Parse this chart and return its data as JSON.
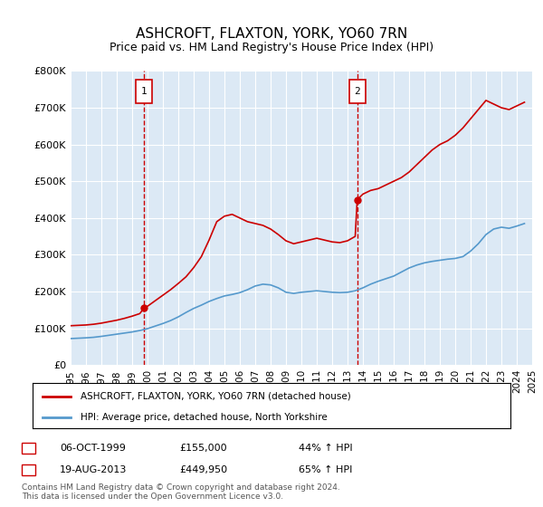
{
  "title": "ASHCROFT, FLAXTON, YORK, YO60 7RN",
  "subtitle": "Price paid vs. HM Land Registry's House Price Index (HPI)",
  "bg_color": "#dce9f5",
  "plot_bg": "#dce9f5",
  "legend_line1": "ASHCROFT, FLAXTON, YORK, YO60 7RN (detached house)",
  "legend_line2": "HPI: Average price, detached house, North Yorkshire",
  "footer": "Contains HM Land Registry data © Crown copyright and database right 2024.\nThis data is licensed under the Open Government Licence v3.0.",
  "sale1_date": "06-OCT-1999",
  "sale1_price": "£155,000",
  "sale1_pct": "44% ↑ HPI",
  "sale2_date": "19-AUG-2013",
  "sale2_price": "£449,950",
  "sale2_pct": "65% ↑ HPI",
  "sale1_x": 1999.77,
  "sale1_y": 155000,
  "sale2_x": 2013.63,
  "sale2_y": 449950,
  "ylim": [
    0,
    800000
  ],
  "xlim": [
    1995,
    2025
  ],
  "red_line_color": "#cc0000",
  "blue_line_color": "#5599cc",
  "marker_box_color": "#cc0000",
  "vline_color": "#cc0000",
  "hpi_x": [
    1995,
    1995.5,
    1996,
    1996.5,
    1997,
    1997.5,
    1998,
    1998.5,
    1999,
    1999.5,
    2000,
    2000.5,
    2001,
    2001.5,
    2002,
    2002.5,
    2003,
    2003.5,
    2004,
    2004.5,
    2005,
    2005.5,
    2006,
    2006.5,
    2007,
    2007.5,
    2008,
    2008.5,
    2009,
    2009.5,
    2010,
    2010.5,
    2011,
    2011.5,
    2012,
    2012.5,
    2013,
    2013.5,
    2014,
    2014.5,
    2015,
    2015.5,
    2016,
    2016.5,
    2017,
    2017.5,
    2018,
    2018.5,
    2019,
    2019.5,
    2020,
    2020.5,
    2021,
    2021.5,
    2022,
    2022.5,
    2023,
    2023.5,
    2024,
    2024.5
  ],
  "hpi_y": [
    72000,
    73000,
    74000,
    75500,
    78000,
    81000,
    84000,
    87000,
    90000,
    94000,
    99000,
    106000,
    113000,
    121000,
    131000,
    143000,
    154000,
    163000,
    173000,
    181000,
    188000,
    192000,
    197000,
    205000,
    215000,
    220000,
    218000,
    210000,
    198000,
    195000,
    198000,
    200000,
    202000,
    200000,
    198000,
    197000,
    198000,
    202000,
    210000,
    220000,
    228000,
    235000,
    242000,
    253000,
    264000,
    272000,
    278000,
    282000,
    285000,
    288000,
    290000,
    295000,
    310000,
    330000,
    355000,
    370000,
    375000,
    372000,
    378000,
    385000
  ],
  "price_x": [
    1995,
    1995.5,
    1996,
    1996.5,
    1997,
    1997.5,
    1998,
    1998.5,
    1999,
    1999.5,
    1999.77,
    2000,
    2000.5,
    2001,
    2001.5,
    2002,
    2002.5,
    2003,
    2003.5,
    2004,
    2004.5,
    2005,
    2005.5,
    2006,
    2006.5,
    2007,
    2007.5,
    2008,
    2008.5,
    2009,
    2009.5,
    2010,
    2010.5,
    2011,
    2011.5,
    2012,
    2012.5,
    2013,
    2013.5,
    2013.63,
    2014,
    2014.5,
    2015,
    2015.5,
    2016,
    2016.5,
    2017,
    2017.5,
    2018,
    2018.5,
    2019,
    2019.5,
    2020,
    2020.5,
    2021,
    2021.5,
    2022,
    2022.5,
    2023,
    2023.5,
    2024,
    2024.5
  ],
  "price_y": [
    107000,
    108000,
    109000,
    111000,
    114000,
    118000,
    122000,
    127000,
    133000,
    140000,
    155000,
    160000,
    175000,
    190000,
    205000,
    222000,
    240000,
    265000,
    295000,
    340000,
    390000,
    405000,
    410000,
    400000,
    390000,
    385000,
    380000,
    370000,
    355000,
    338000,
    330000,
    335000,
    340000,
    345000,
    340000,
    335000,
    333000,
    338000,
    350000,
    449950,
    465000,
    475000,
    480000,
    490000,
    500000,
    510000,
    525000,
    545000,
    565000,
    585000,
    600000,
    610000,
    625000,
    645000,
    670000,
    695000,
    720000,
    710000,
    700000,
    695000,
    705000,
    715000
  ],
  "xticks": [
    1995,
    1996,
    1997,
    1998,
    1999,
    2000,
    2001,
    2002,
    2003,
    2004,
    2005,
    2006,
    2007,
    2008,
    2009,
    2010,
    2011,
    2012,
    2013,
    2014,
    2015,
    2016,
    2017,
    2018,
    2019,
    2020,
    2021,
    2022,
    2023,
    2024,
    2025
  ],
  "yticks": [
    0,
    100000,
    200000,
    300000,
    400000,
    500000,
    600000,
    700000,
    800000
  ]
}
